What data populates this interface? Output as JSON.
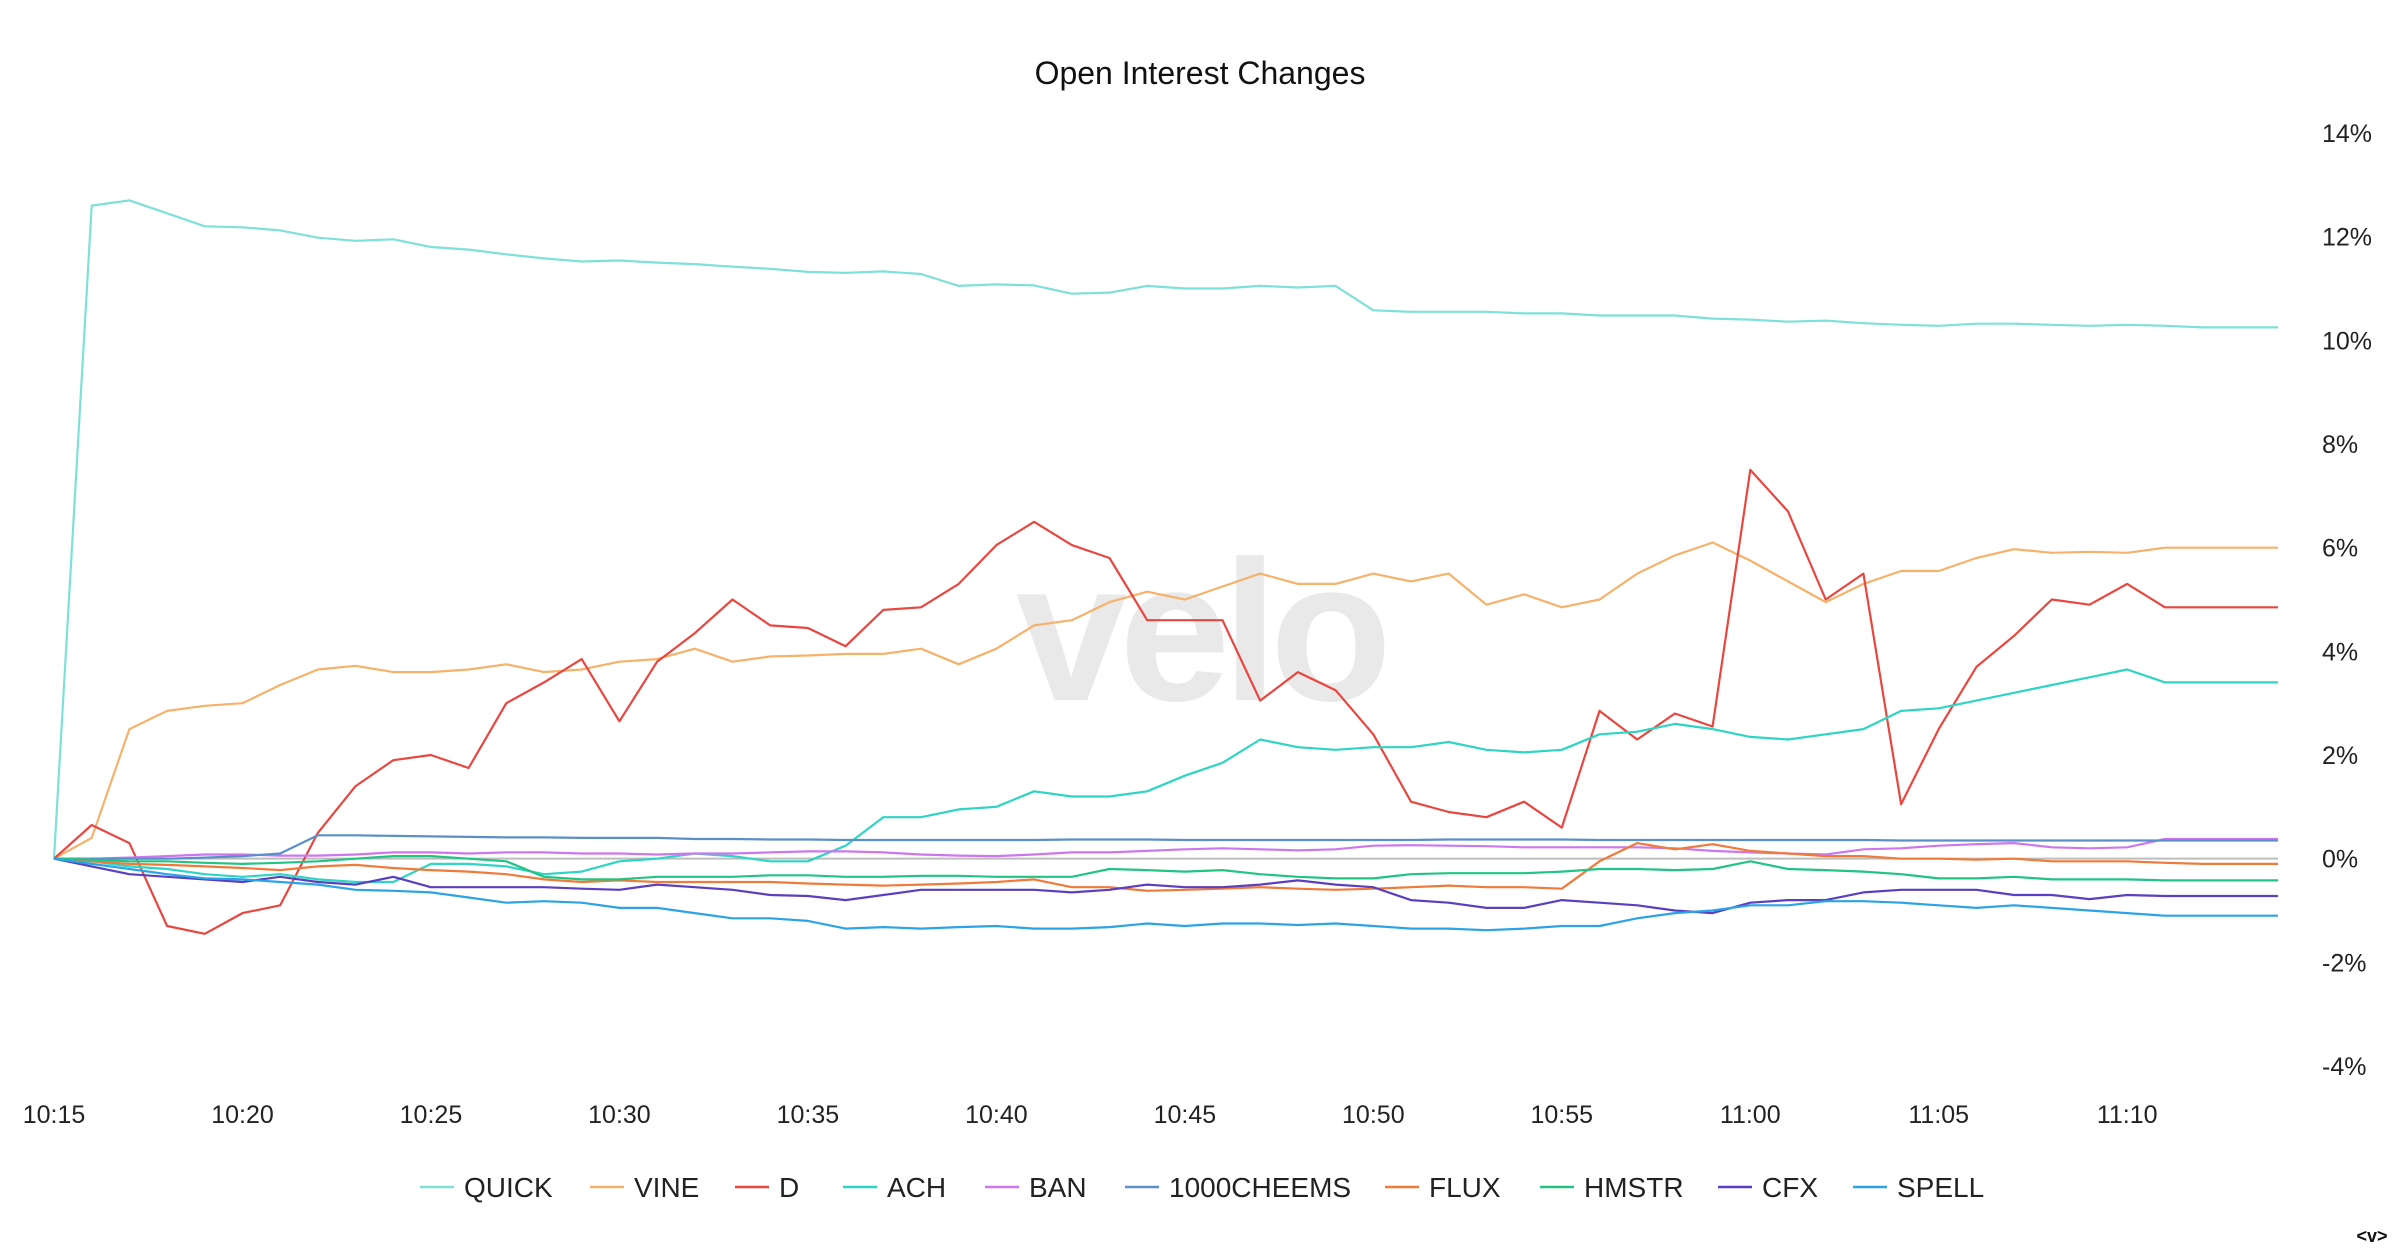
{
  "chart_data": {
    "type": "line",
    "title": "Open Interest Changes",
    "watermark": "velo",
    "corner_control": "<v>",
    "xlabel": "",
    "ylabel": "",
    "x_ticks": [
      "10:15",
      "10:20",
      "10:25",
      "10:30",
      "10:35",
      "10:40",
      "10:45",
      "10:50",
      "10:55",
      "11:00",
      "11:05",
      "11:10"
    ],
    "x_range": [
      "10:15",
      "11:14"
    ],
    "y_ticks": [
      "14%",
      "12%",
      "10%",
      "8%",
      "6%",
      "4%",
      "2%",
      "0%",
      "-2%",
      "-4%"
    ],
    "ylim": [
      -4,
      14
    ],
    "grid": false,
    "legend_position": "bottom",
    "series": [
      {
        "name": "QUICK",
        "color": "#7fe0d8",
        "values": [
          0,
          12.6,
          12.7,
          12.45,
          12.2,
          12.18,
          12.12,
          11.98,
          11.92,
          11.95,
          11.8,
          11.75,
          11.66,
          11.58,
          11.52,
          11.54,
          11.5,
          11.47,
          11.42,
          11.38,
          11.32,
          11.3,
          11.33,
          11.28,
          11.05,
          11.08,
          11.06,
          10.9,
          10.92,
          11.05,
          11.0,
          11.0,
          11.05,
          11.02,
          11.05,
          10.58,
          10.55,
          10.55,
          10.55,
          10.52,
          10.52,
          10.48,
          10.48,
          10.48,
          10.42,
          10.4,
          10.36,
          10.38,
          10.33,
          10.3,
          10.28,
          10.32,
          10.32,
          10.3,
          10.28,
          10.3,
          10.28,
          10.25,
          10.25,
          10.25
        ]
      },
      {
        "name": "VINE",
        "color": "#f6b26b",
        "values": [
          0,
          0.4,
          2.5,
          2.85,
          2.95,
          3.0,
          3.35,
          3.65,
          3.72,
          3.6,
          3.6,
          3.65,
          3.75,
          3.6,
          3.65,
          3.8,
          3.85,
          4.05,
          3.8,
          3.9,
          3.92,
          3.95,
          3.95,
          4.05,
          3.75,
          4.05,
          4.5,
          4.6,
          4.95,
          5.15,
          5.0,
          5.25,
          5.5,
          5.3,
          5.3,
          5.5,
          5.35,
          5.5,
          4.9,
          5.1,
          4.85,
          5.0,
          5.5,
          5.85,
          6.1,
          5.75,
          5.35,
          4.95,
          5.3,
          5.55,
          5.55,
          5.8,
          5.97,
          5.9,
          5.92,
          5.9,
          6.0,
          6.0,
          6.0,
          6.0
        ]
      },
      {
        "name": "D",
        "color": "#e8463f",
        "values": [
          0,
          0.65,
          0.3,
          -1.3,
          -1.45,
          -1.05,
          -0.9,
          0.5,
          1.4,
          1.9,
          2.0,
          1.75,
          3.0,
          3.4,
          3.85,
          2.65,
          3.8,
          4.35,
          5.0,
          4.5,
          4.45,
          4.1,
          4.8,
          4.85,
          5.3,
          6.05,
          6.5,
          6.05,
          5.8,
          4.6,
          4.6,
          4.6,
          3.05,
          3.6,
          3.25,
          2.4,
          1.1,
          0.9,
          0.8,
          1.1,
          0.6,
          2.85,
          2.3,
          2.8,
          2.55,
          7.5,
          6.7,
          5.0,
          5.5,
          1.05,
          2.5,
          3.7,
          4.3,
          5.0,
          4.9,
          5.3,
          4.85,
          4.85,
          4.85,
          4.85
        ]
      },
      {
        "name": "ACH",
        "color": "#2ed4c4",
        "values": [
          0,
          -0.05,
          -0.15,
          -0.2,
          -0.3,
          -0.35,
          -0.3,
          -0.4,
          -0.45,
          -0.45,
          -0.1,
          -0.1,
          -0.15,
          -0.3,
          -0.25,
          -0.05,
          0.0,
          0.1,
          0.05,
          -0.05,
          -0.05,
          0.25,
          0.8,
          0.8,
          0.95,
          1.0,
          1.3,
          1.2,
          1.2,
          1.3,
          1.6,
          1.85,
          2.3,
          2.15,
          2.1,
          2.15,
          2.15,
          2.25,
          2.1,
          2.05,
          2.1,
          2.4,
          2.45,
          2.6,
          2.5,
          2.35,
          2.3,
          2.4,
          2.5,
          2.85,
          2.9,
          3.05,
          3.2,
          3.35,
          3.5,
          3.65,
          3.4,
          3.4,
          3.4,
          3.4
        ]
      },
      {
        "name": "BAN",
        "color": "#cc77ee",
        "values": [
          0,
          0.0,
          0.02,
          0.05,
          0.08,
          0.08,
          0.06,
          0.06,
          0.08,
          0.12,
          0.12,
          0.1,
          0.12,
          0.12,
          0.1,
          0.1,
          0.08,
          0.1,
          0.1,
          0.12,
          0.14,
          0.14,
          0.12,
          0.08,
          0.06,
          0.05,
          0.08,
          0.12,
          0.12,
          0.15,
          0.18,
          0.2,
          0.18,
          0.16,
          0.18,
          0.25,
          0.26,
          0.25,
          0.24,
          0.22,
          0.22,
          0.22,
          0.22,
          0.2,
          0.15,
          0.12,
          0.1,
          0.08,
          0.18,
          0.2,
          0.25,
          0.28,
          0.3,
          0.22,
          0.2,
          0.22,
          0.38,
          0.38,
          0.38,
          0.38
        ]
      },
      {
        "name": "1000CHEEMS",
        "color": "#5b8fc7",
        "values": [
          0,
          0.0,
          0.0,
          0.0,
          0.02,
          0.05,
          0.1,
          0.45,
          0.45,
          0.44,
          0.43,
          0.42,
          0.41,
          0.41,
          0.4,
          0.4,
          0.4,
          0.38,
          0.38,
          0.37,
          0.37,
          0.36,
          0.36,
          0.36,
          0.36,
          0.36,
          0.36,
          0.37,
          0.37,
          0.37,
          0.36,
          0.36,
          0.36,
          0.36,
          0.36,
          0.36,
          0.36,
          0.37,
          0.37,
          0.37,
          0.37,
          0.36,
          0.36,
          0.36,
          0.36,
          0.36,
          0.36,
          0.36,
          0.36,
          0.35,
          0.35,
          0.35,
          0.35,
          0.35,
          0.35,
          0.35,
          0.35,
          0.35,
          0.35,
          0.35
        ]
      },
      {
        "name": "FLUX",
        "color": "#f07a3a",
        "values": [
          0,
          -0.05,
          -0.1,
          -0.12,
          -0.15,
          -0.18,
          -0.22,
          -0.15,
          -0.12,
          -0.18,
          -0.22,
          -0.25,
          -0.3,
          -0.4,
          -0.45,
          -0.42,
          -0.45,
          -0.45,
          -0.45,
          -0.45,
          -0.48,
          -0.5,
          -0.52,
          -0.5,
          -0.48,
          -0.45,
          -0.4,
          -0.55,
          -0.55,
          -0.62,
          -0.6,
          -0.58,
          -0.55,
          -0.58,
          -0.6,
          -0.58,
          -0.55,
          -0.52,
          -0.55,
          -0.55,
          -0.58,
          -0.05,
          0.3,
          0.18,
          0.28,
          0.15,
          0.1,
          0.05,
          0.05,
          0.0,
          0.0,
          -0.02,
          0.0,
          -0.05,
          -0.05,
          -0.05,
          -0.08,
          -0.1,
          -0.1,
          -0.1
        ]
      },
      {
        "name": "HMSTR",
        "color": "#22c485",
        "values": [
          0,
          -0.02,
          -0.05,
          -0.05,
          -0.08,
          -0.1,
          -0.08,
          -0.05,
          0.0,
          0.05,
          0.05,
          0.0,
          -0.05,
          -0.35,
          -0.4,
          -0.4,
          -0.35,
          -0.35,
          -0.35,
          -0.32,
          -0.32,
          -0.35,
          -0.35,
          -0.33,
          -0.33,
          -0.35,
          -0.35,
          -0.35,
          -0.2,
          -0.22,
          -0.25,
          -0.22,
          -0.3,
          -0.35,
          -0.38,
          -0.38,
          -0.3,
          -0.28,
          -0.28,
          -0.28,
          -0.25,
          -0.2,
          -0.2,
          -0.22,
          -0.2,
          -0.05,
          -0.2,
          -0.22,
          -0.25,
          -0.3,
          -0.38,
          -0.38,
          -0.35,
          -0.4,
          -0.4,
          -0.4,
          -0.42,
          -0.42,
          -0.42,
          -0.42
        ]
      },
      {
        "name": "CFX",
        "color": "#5a3fc0",
        "values": [
          0,
          -0.15,
          -0.3,
          -0.35,
          -0.4,
          -0.45,
          -0.35,
          -0.45,
          -0.5,
          -0.35,
          -0.55,
          -0.55,
          -0.55,
          -0.55,
          -0.58,
          -0.6,
          -0.5,
          -0.55,
          -0.6,
          -0.7,
          -0.72,
          -0.8,
          -0.7,
          -0.6,
          -0.6,
          -0.6,
          -0.6,
          -0.65,
          -0.6,
          -0.5,
          -0.55,
          -0.55,
          -0.5,
          -0.42,
          -0.5,
          -0.55,
          -0.8,
          -0.85,
          -0.95,
          -0.95,
          -0.8,
          -0.85,
          -0.9,
          -1.0,
          -1.05,
          -0.85,
          -0.8,
          -0.8,
          -0.65,
          -0.6,
          -0.6,
          -0.6,
          -0.7,
          -0.7,
          -0.78,
          -0.7,
          -0.72,
          -0.72,
          -0.72,
          -0.72
        ]
      },
      {
        "name": "SPELL",
        "color": "#2ba3e6",
        "values": [
          0,
          -0.1,
          -0.2,
          -0.3,
          -0.38,
          -0.4,
          -0.45,
          -0.5,
          -0.6,
          -0.62,
          -0.65,
          -0.75,
          -0.85,
          -0.82,
          -0.85,
          -0.95,
          -0.95,
          -1.05,
          -1.15,
          -1.15,
          -1.2,
          -1.35,
          -1.32,
          -1.35,
          -1.32,
          -1.3,
          -1.35,
          -1.35,
          -1.32,
          -1.25,
          -1.3,
          -1.25,
          -1.25,
          -1.28,
          -1.25,
          -1.3,
          -1.35,
          -1.35,
          -1.38,
          -1.35,
          -1.3,
          -1.3,
          -1.15,
          -1.05,
          -1.0,
          -0.9,
          -0.9,
          -0.82,
          -0.82,
          -0.85,
          -0.9,
          -0.95,
          -0.9,
          -0.95,
          -1.0,
          -1.05,
          -1.1,
          -1.1,
          -1.1,
          -1.1
        ]
      }
    ]
  }
}
